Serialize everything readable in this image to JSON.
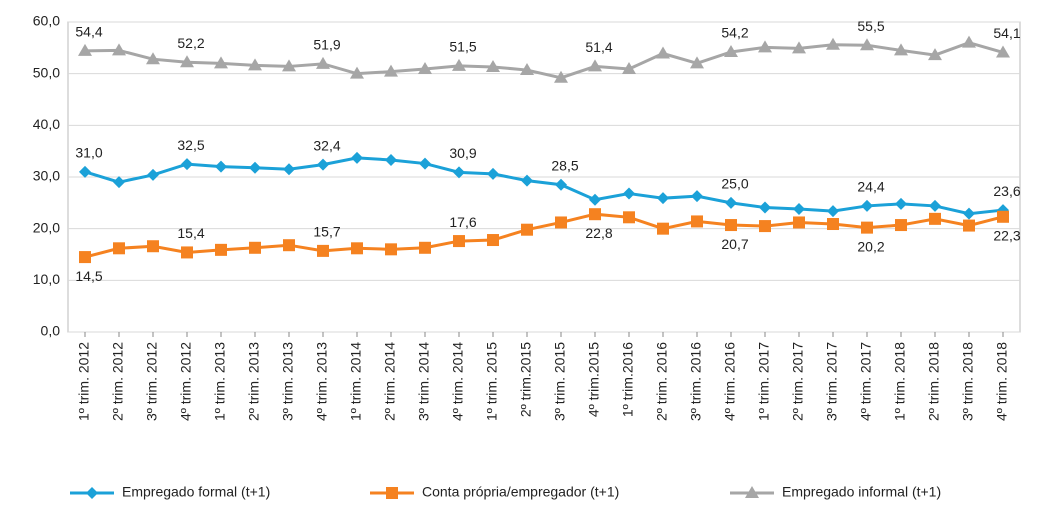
{
  "chart_data": {
    "type": "line",
    "categories": [
      "1º trim. 2012",
      "2º trim. 2012",
      "3º trim. 2012",
      "4º trim. 2012",
      "1º trim. 2013",
      "2º trim. 2013",
      "3º trim. 2013",
      "4º trim. 2013",
      "1º trim. 2014",
      "2º trim. 2014",
      "3º trim. 2014",
      "4º trim. 2014",
      "1º trim. 2015",
      "2º trim.2015",
      "3º trim. 2015",
      "4º trim.2015",
      "1º trim.2016",
      "2º trim. 2016",
      "3º trim. 2016",
      "4º trim. 2016",
      "1º trim. 2017",
      "2º trim. 2017",
      "3º trim. 2017",
      "4º trim. 2017",
      "1º trim. 2018",
      "2º trim. 2018",
      "3º trim. 2018",
      "4º trim. 2018"
    ],
    "series": [
      {
        "name": "Empregado formal (t+1)",
        "color": "#1ba1d8",
        "marker": "diamond",
        "values": [
          31.0,
          29.0,
          30.4,
          32.5,
          32.0,
          31.8,
          31.5,
          32.4,
          33.7,
          33.3,
          32.6,
          30.9,
          30.6,
          29.3,
          28.5,
          25.6,
          26.8,
          25.9,
          26.3,
          25.0,
          24.1,
          23.8,
          23.4,
          24.4,
          24.8,
          24.4,
          22.9,
          23.6
        ],
        "value_labels": [
          "31,0",
          null,
          null,
          "32,5",
          null,
          null,
          null,
          "32,4",
          null,
          null,
          null,
          "30,9",
          null,
          null,
          "28,5",
          null,
          null,
          null,
          null,
          "25,0",
          null,
          null,
          null,
          "24,4",
          null,
          null,
          null,
          "23,6"
        ]
      },
      {
        "name": "Conta própria/empregador (t+1)",
        "color": "#f58220",
        "marker": "square",
        "values": [
          14.5,
          16.2,
          16.6,
          15.4,
          15.9,
          16.3,
          16.8,
          15.7,
          16.2,
          16.0,
          16.3,
          17.6,
          17.8,
          19.8,
          21.2,
          22.8,
          22.2,
          20.0,
          21.4,
          20.7,
          20.5,
          21.2,
          20.9,
          20.2,
          20.7,
          21.9,
          20.6,
          22.3
        ],
        "value_labels": [
          "14,5",
          null,
          null,
          "15,4",
          null,
          null,
          null,
          "15,7",
          null,
          null,
          null,
          "17,6",
          null,
          null,
          null,
          "22,8",
          null,
          null,
          null,
          "20,7",
          null,
          null,
          null,
          "20,2",
          null,
          null,
          null,
          "22,3"
        ]
      },
      {
        "name": "Empregado informal (t+1)",
        "color": "#a6a6a6",
        "marker": "triangle",
        "values": [
          54.4,
          54.5,
          52.8,
          52.2,
          52.0,
          51.6,
          51.4,
          51.9,
          50.0,
          50.4,
          50.9,
          51.5,
          51.3,
          50.7,
          49.2,
          51.4,
          50.9,
          53.9,
          52.0,
          54.2,
          55.1,
          54.9,
          55.6,
          55.5,
          54.5,
          53.6,
          56.0,
          54.1
        ],
        "value_labels": [
          "54,4",
          null,
          null,
          "52,2",
          null,
          null,
          null,
          "51,9",
          null,
          null,
          null,
          "51,5",
          null,
          null,
          null,
          "51,4",
          null,
          null,
          null,
          "54,2",
          null,
          null,
          null,
          "55,5",
          null,
          null,
          null,
          "54,1"
        ]
      }
    ],
    "ylim": [
      0,
      60
    ],
    "yticks": [
      {
        "value": 0,
        "label": "0,0"
      },
      {
        "value": 10,
        "label": "10,0"
      },
      {
        "value": 20,
        "label": "20,0"
      },
      {
        "value": 30,
        "label": "30,0"
      },
      {
        "value": 40,
        "label": "40,0"
      },
      {
        "value": 50,
        "label": "50,0"
      },
      {
        "value": 60,
        "label": "60,0"
      }
    ],
    "grid": true,
    "legend": "bottom"
  }
}
